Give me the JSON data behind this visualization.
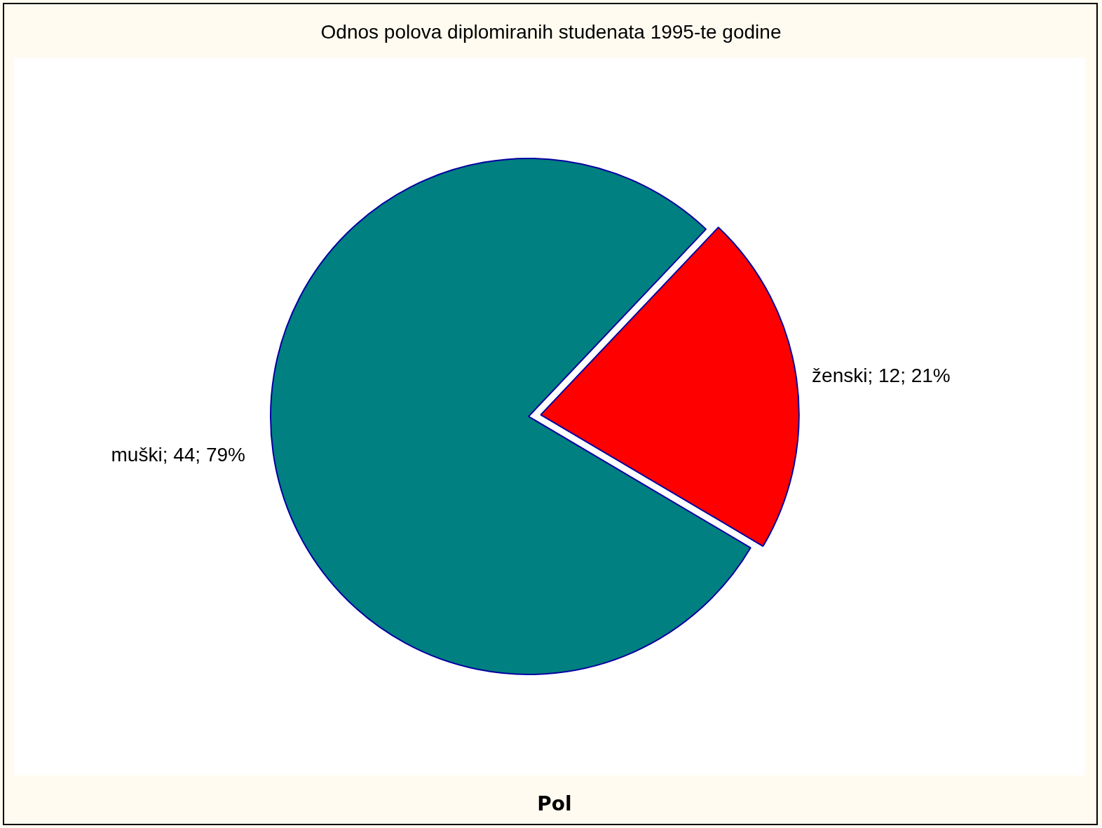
{
  "chart_data": {
    "type": "pie",
    "title": "Odnos polova diplomiranih studenata 1995-te godine",
    "xlabel": "Pol",
    "categories": [
      "muški",
      "ženski"
    ],
    "values": [
      44,
      12
    ],
    "colors": [
      "#008080",
      "#ff0000"
    ],
    "value_labels": [
      "44; 79%",
      "12; 21%"
    ],
    "legend": false
  }
}
